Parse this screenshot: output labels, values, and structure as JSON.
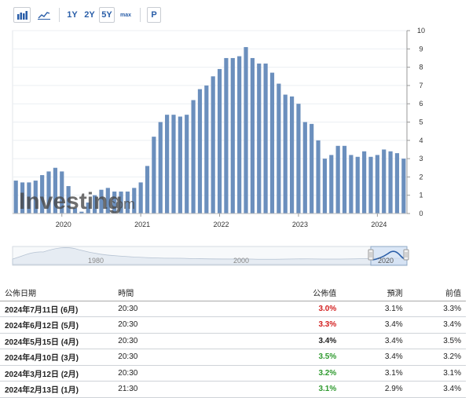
{
  "toolbar": {
    "bar_chart_icon": "bar-chart-icon",
    "line_chart_icon": "line-chart-icon",
    "periods": [
      "1Y",
      "2Y",
      "5Y",
      "max"
    ],
    "active_period": "5Y",
    "print_label": "P"
  },
  "chart_data": {
    "type": "bar",
    "x_ticks": [
      "2020",
      "2021",
      "2022",
      "2023",
      "2024"
    ],
    "y_ticks": [
      "0",
      "1",
      "2",
      "3",
      "4",
      "5",
      "6",
      "7",
      "8",
      "9",
      "10"
    ],
    "ylim": [
      0,
      10
    ],
    "watermark": "Investing",
    "watermark_suffix": ".com",
    "bar_color": "#6b8fbd",
    "values": [
      1.8,
      1.7,
      1.7,
      1.8,
      2.1,
      2.3,
      2.5,
      2.3,
      1.5,
      0.3,
      0.1,
      0.6,
      1.0,
      1.3,
      1.4,
      1.2,
      1.2,
      1.2,
      1.4,
      1.7,
      2.6,
      4.2,
      5.0,
      5.4,
      5.4,
      5.3,
      5.4,
      6.2,
      6.8,
      7.0,
      7.5,
      7.9,
      8.5,
      8.5,
      8.6,
      9.1,
      8.5,
      8.2,
      8.2,
      7.7,
      7.1,
      6.5,
      6.4,
      6.0,
      5.0,
      4.9,
      4.0,
      3.0,
      3.2,
      3.7,
      3.7,
      3.2,
      3.1,
      3.4,
      3.1,
      3.2,
      3.5,
      3.4,
      3.3,
      3.0
    ],
    "navigator_ticks": [
      "1980",
      "2000",
      "2020"
    ]
  },
  "table": {
    "headers": {
      "date": "公佈日期",
      "time": "時間",
      "actual": "公佈值",
      "forecast": "預測",
      "previous": "前值"
    },
    "rows": [
      {
        "date": "2024年7月11日 (6月)",
        "time": "20:30",
        "actual": "3.0%",
        "forecast": "3.1%",
        "previous": "3.3%",
        "trend": "neg"
      },
      {
        "date": "2024年6月12日 (5月)",
        "time": "20:30",
        "actual": "3.3%",
        "forecast": "3.4%",
        "previous": "3.4%",
        "trend": "neg"
      },
      {
        "date": "2024年5月15日 (4月)",
        "time": "20:30",
        "actual": "3.4%",
        "forecast": "3.4%",
        "previous": "3.5%",
        "trend": "neu"
      },
      {
        "date": "2024年4月10日 (3月)",
        "time": "20:30",
        "actual": "3.5%",
        "forecast": "3.4%",
        "previous": "3.2%",
        "trend": "pos"
      },
      {
        "date": "2024年3月12日 (2月)",
        "time": "20:30",
        "actual": "3.2%",
        "forecast": "3.1%",
        "previous": "3.1%",
        "trend": "pos"
      },
      {
        "date": "2024年2月13日 (1月)",
        "time": "21:30",
        "actual": "3.1%",
        "forecast": "2.9%",
        "previous": "3.4%",
        "trend": "pos"
      }
    ]
  }
}
